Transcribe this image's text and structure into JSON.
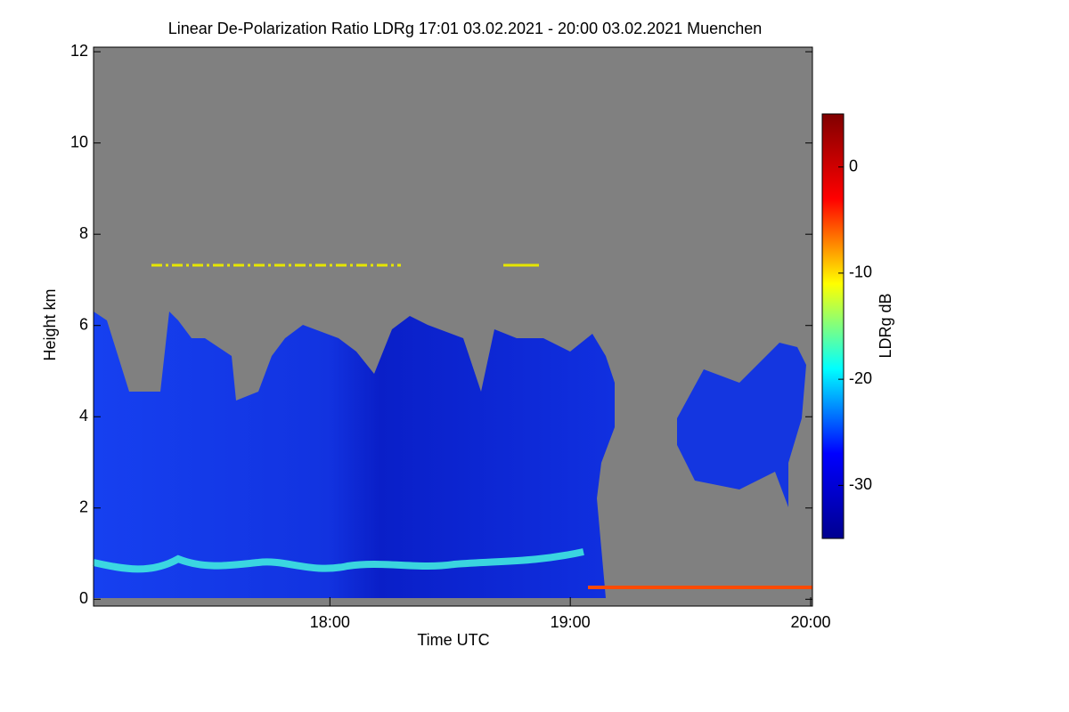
{
  "chart_data": {
    "type": "heatmap",
    "title": "Linear De-Polarization Ratio LDRg   17:01 03.02.2021 - 20:00 03.02.2021 Muenchen",
    "xlabel": "Time UTC",
    "ylabel": "Height km",
    "xlim": [
      "17:01",
      "20:00"
    ],
    "xticks": [
      "18:00",
      "19:00",
      "20:00"
    ],
    "ylim": [
      -0.15,
      12.1
    ],
    "yticks": [
      0,
      2,
      4,
      6,
      8,
      10,
      12
    ],
    "colorbar": {
      "label": "LDRg dB",
      "lim": [
        -35,
        5
      ],
      "ticks": [
        0,
        -10,
        -20,
        -30
      ],
      "colors": [
        "#00008f",
        "#0000ff",
        "#00ffff",
        "#ffff00",
        "#ff0000",
        "#800000"
      ]
    }
  }
}
